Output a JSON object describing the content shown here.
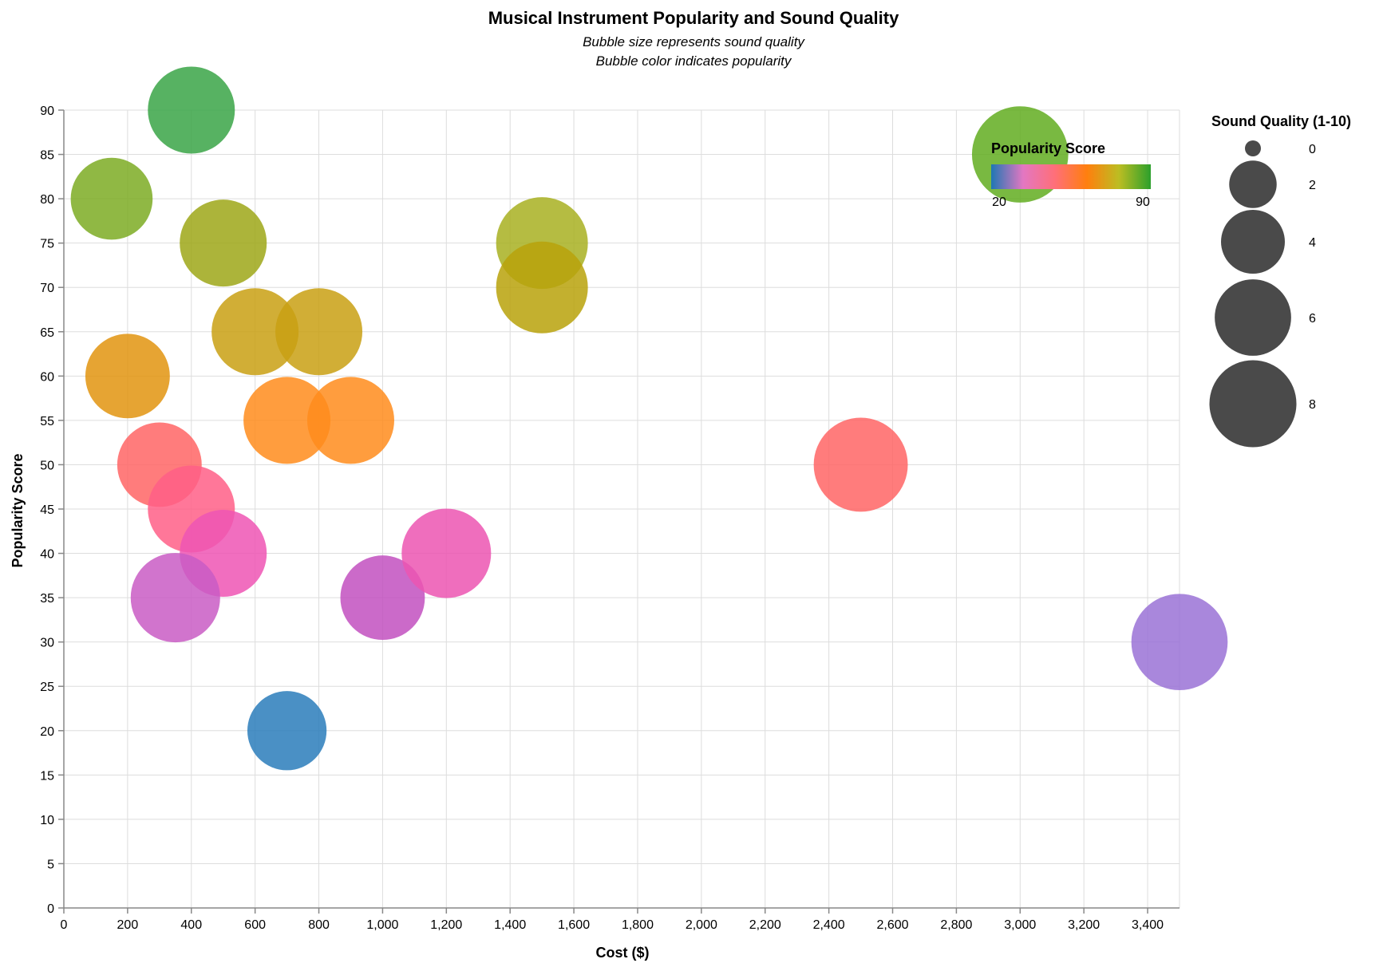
{
  "chart_data": {
    "type": "scatter",
    "title": "Musical Instrument Popularity and Sound Quality",
    "subtitle": [
      "Bubble size represents sound quality",
      "Bubble color indicates popularity"
    ],
    "xlabel": "Cost ($)",
    "ylabel": "Popularity Score",
    "xlim": [
      0,
      3500
    ],
    "ylim": [
      0,
      90
    ],
    "x_ticks": [
      "0",
      "200",
      "400",
      "600",
      "800",
      "1,000",
      "1,200",
      "1,400",
      "1,600",
      "1,800",
      "2,000",
      "2,200",
      "2,400",
      "2,600",
      "2,800",
      "3,000",
      "3,200",
      "3,400"
    ],
    "y_ticks": [
      "0",
      "5",
      "10",
      "15",
      "20",
      "25",
      "30",
      "35",
      "40",
      "45",
      "50",
      "55",
      "60",
      "65",
      "70",
      "75",
      "80",
      "85",
      "90"
    ],
    "grid": true,
    "color_legend": {
      "title": "Popularity Score",
      "min_label": "20",
      "max_label": "90",
      "placement": "top-right inside plot",
      "gradient": [
        "#1f77b4",
        "#e377c2",
        "#ff6f78",
        "#ff7f0e",
        "#bcbd22",
        "#2ca02c"
      ]
    },
    "size_legend": {
      "title": "Sound Quality (1-10)",
      "entries": [
        "0",
        "2",
        "4",
        "6",
        "8"
      ],
      "values": [
        0,
        2,
        4,
        6,
        8
      ],
      "placement": "right",
      "symbol_color": "#4a4a4a"
    },
    "points": [
      {
        "x": 400,
        "y": 90,
        "quality": 8,
        "color": "#3aa546"
      },
      {
        "x": 150,
        "y": 80,
        "quality": 7,
        "color": "#7cac23"
      },
      {
        "x": 500,
        "y": 75,
        "quality": 8,
        "color": "#9da718"
      },
      {
        "x": 200,
        "y": 60,
        "quality": 7.5,
        "color": "#e2940f"
      },
      {
        "x": 600,
        "y": 65,
        "quality": 8,
        "color": "#c9a013"
      },
      {
        "x": 800,
        "y": 65,
        "quality": 8,
        "color": "#c9a013"
      },
      {
        "x": 700,
        "y": 55,
        "quality": 8,
        "color": "#ff8c1c"
      },
      {
        "x": 900,
        "y": 55,
        "quality": 8,
        "color": "#ff8c1c"
      },
      {
        "x": 1500,
        "y": 75,
        "quality": 9,
        "color": "#a8b021"
      },
      {
        "x": 1500,
        "y": 70,
        "quality": 9,
        "color": "#b8a20b"
      },
      {
        "x": 3000,
        "y": 85,
        "quality": 10,
        "color": "#61ad20"
      },
      {
        "x": 300,
        "y": 50,
        "quality": 7.5,
        "color": "#ff6565"
      },
      {
        "x": 400,
        "y": 45,
        "quality": 8,
        "color": "#ff5f87"
      },
      {
        "x": 500,
        "y": 40,
        "quality": 8,
        "color": "#ee55b4"
      },
      {
        "x": 350,
        "y": 35,
        "quality": 8.5,
        "color": "#c95cc4"
      },
      {
        "x": 1000,
        "y": 35,
        "quality": 7.5,
        "color": "#c250c0"
      },
      {
        "x": 1200,
        "y": 40,
        "quality": 8.5,
        "color": "#ec55b2"
      },
      {
        "x": 2500,
        "y": 50,
        "quality": 9.5,
        "color": "#ff6565"
      },
      {
        "x": 700,
        "y": 20,
        "quality": 6.5,
        "color": "#2a7cbb"
      },
      {
        "x": 3500,
        "y": 30,
        "quality": 10,
        "color": "#9a72d6"
      }
    ]
  }
}
